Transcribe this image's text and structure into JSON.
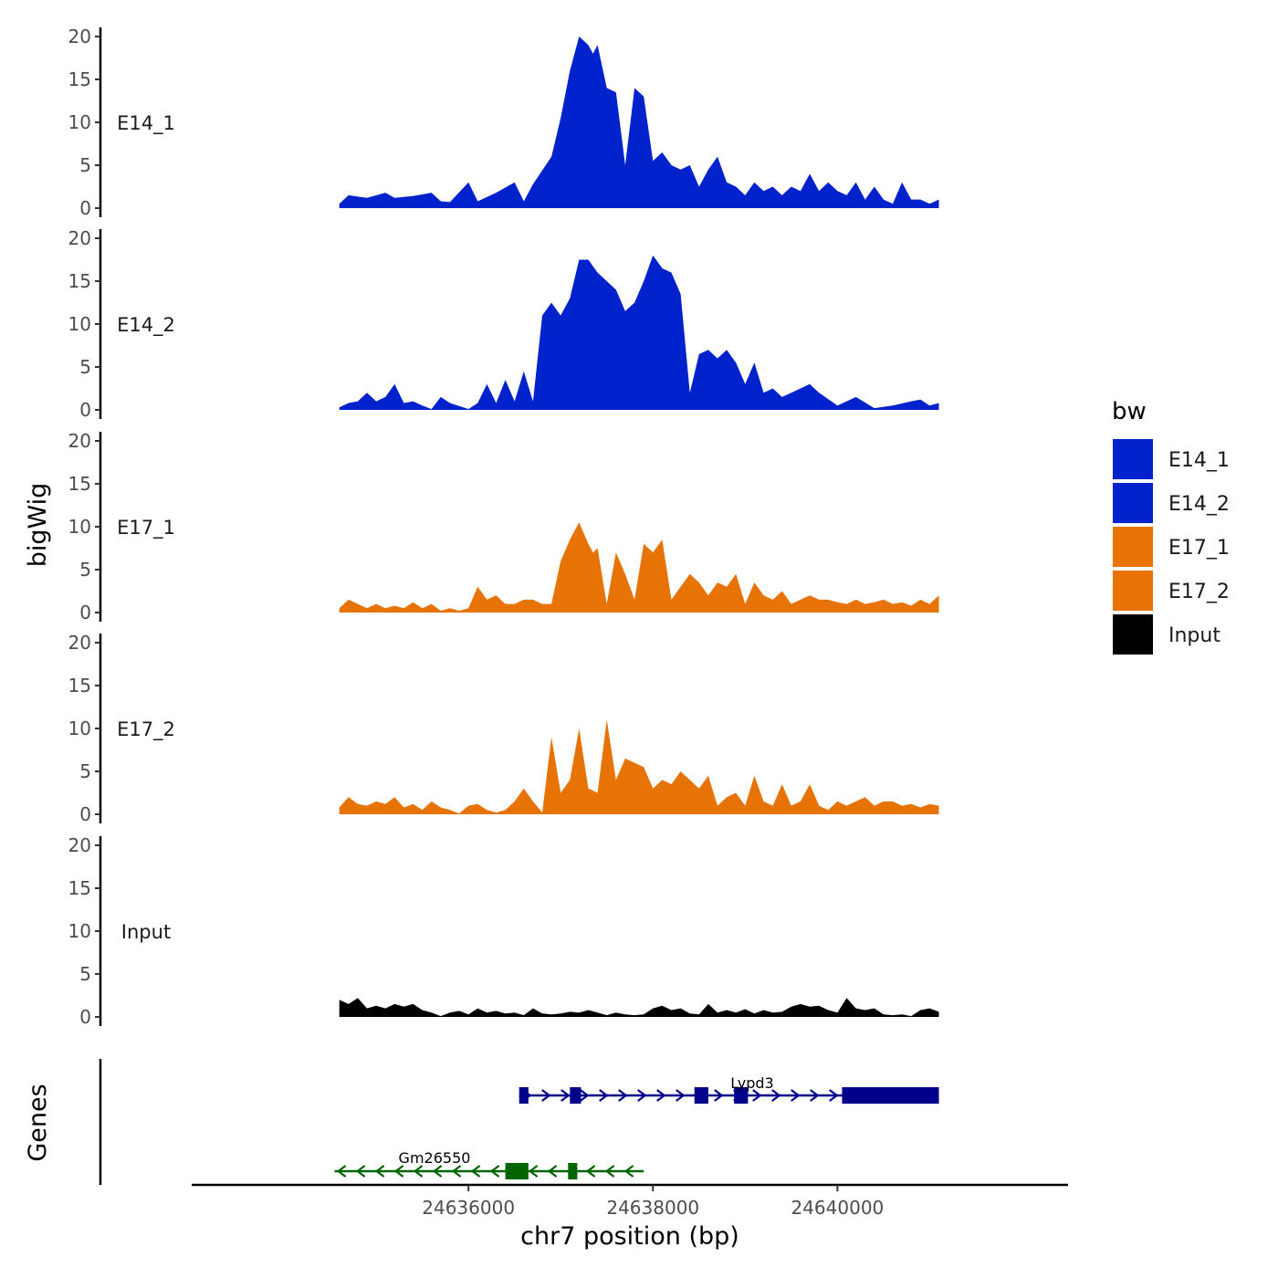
{
  "chart_data": {
    "type": "area",
    "subtype": "genome-browser-coverage-tracks",
    "ylabel": "bigWig",
    "xlabel": "chr7 position (bp)",
    "xlim": [
      24633000,
      24642500
    ],
    "ylim": [
      0,
      20
    ],
    "y_ticks": [
      "0",
      "5",
      "10",
      "15",
      "20"
    ],
    "x_ticks": [
      {
        "value": 24636000,
        "label": "24636000"
      },
      {
        "value": 24638000,
        "label": "24638000"
      },
      {
        "value": 24640000,
        "label": "24640000"
      }
    ],
    "legend": {
      "title": "bw",
      "position": "right",
      "entries": [
        {
          "label": "E14_1",
          "color": "#0022CC"
        },
        {
          "label": "E14_2",
          "color": "#0022CC"
        },
        {
          "label": "E17_1",
          "color": "#E87305"
        },
        {
          "label": "E17_2",
          "color": "#E87305"
        },
        {
          "label": "Input",
          "color": "#000000"
        }
      ]
    },
    "series": [
      {
        "name": "E14_1",
        "color": "#0022CC",
        "x": [
          24634600,
          24634700,
          24634900,
          24635100,
          24635200,
          24635400,
          24635600,
          24635700,
          24635800,
          24636000,
          24636100,
          24636300,
          24636500,
          24636600,
          24636700,
          24636900,
          24637000,
          24637100,
          24637200,
          24637300,
          24637350,
          24637400,
          24637500,
          24637600,
          24637700,
          24637800,
          24637900,
          24638000,
          24638100,
          24638200,
          24638300,
          24638400,
          24638500,
          24638600,
          24638700,
          24638800,
          24638900,
          24639000,
          24639100,
          24639200,
          24639300,
          24639400,
          24639500,
          24639600,
          24639700,
          24639800,
          24639900,
          24640000,
          24640100,
          24640200,
          24640300,
          24640400,
          24640500,
          24640600,
          24640700,
          24640800,
          24640900,
          24641000,
          24641100
        ],
        "y": [
          0.5,
          1.5,
          1.2,
          1.8,
          1.2,
          1.4,
          1.8,
          0.8,
          0.7,
          3.0,
          0.8,
          1.8,
          3.0,
          0.8,
          2.8,
          6.0,
          10.5,
          16.0,
          20.0,
          19.0,
          18.0,
          19.0,
          14.0,
          13.5,
          5.0,
          14.0,
          13.0,
          5.5,
          6.5,
          5.0,
          4.5,
          5.0,
          2.5,
          4.5,
          6.0,
          3.0,
          2.5,
          1.5,
          3.0,
          2.0,
          2.5,
          1.5,
          2.5,
          2.0,
          4.0,
          2.0,
          3.0,
          2.0,
          1.5,
          3.0,
          1.0,
          2.5,
          1.0,
          0.5,
          3.0,
          1.0,
          1.0,
          0.5,
          1.0
        ]
      },
      {
        "name": "E14_2",
        "color": "#0022CC",
        "x": [
          24634600,
          24634700,
          24634800,
          24634900,
          24635000,
          24635100,
          24635200,
          24635300,
          24635400,
          24635500,
          24635600,
          24635700,
          24635800,
          24636000,
          24636100,
          24636200,
          24636300,
          24636400,
          24636500,
          24636600,
          24636700,
          24636800,
          24636900,
          24637000,
          24637100,
          24637200,
          24637300,
          24637400,
          24637500,
          24637600,
          24637700,
          24637800,
          24637900,
          24638000,
          24638100,
          24638200,
          24638300,
          24638400,
          24638500,
          24638600,
          24638700,
          24638800,
          24638900,
          24639000,
          24639100,
          24639200,
          24639300,
          24639400,
          24639500,
          24639600,
          24639700,
          24639800,
          24640000,
          24640100,
          24640200,
          24640400,
          24640600,
          24640800,
          24640900,
          24641000,
          24641100
        ],
        "y": [
          0.3,
          0.8,
          1.0,
          2.0,
          1.0,
          1.5,
          3.0,
          0.8,
          1.0,
          0.5,
          0.1,
          1.5,
          0.8,
          0.1,
          0.8,
          3.0,
          0.8,
          3.5,
          1.0,
          4.5,
          1.0,
          11.0,
          12.5,
          11.0,
          13.0,
          17.5,
          17.5,
          16.0,
          15.0,
          14.0,
          11.5,
          12.5,
          15.0,
          18.0,
          16.5,
          16.0,
          13.5,
          2.0,
          6.5,
          7.0,
          6.0,
          7.0,
          5.5,
          3.0,
          5.5,
          2.0,
          2.5,
          1.5,
          2.0,
          2.5,
          3.0,
          2.0,
          0.5,
          1.0,
          1.5,
          0.2,
          0.5,
          1.0,
          1.2,
          0.5,
          0.8
        ]
      },
      {
        "name": "E17_1",
        "color": "#E87305",
        "x": [
          24634600,
          24634700,
          24634800,
          24634900,
          24635000,
          24635100,
          24635200,
          24635300,
          24635400,
          24635500,
          24635600,
          24635700,
          24635800,
          24635900,
          24636000,
          24636100,
          24636200,
          24636300,
          24636400,
          24636500,
          24636600,
          24636700,
          24636800,
          24636900,
          24637000,
          24637100,
          24637200,
          24637300,
          24637350,
          24637400,
          24637500,
          24637600,
          24637700,
          24637800,
          24637900,
          24638000,
          24638100,
          24638200,
          24638300,
          24638400,
          24638500,
          24638600,
          24638700,
          24638800,
          24638900,
          24639000,
          24639100,
          24639200,
          24639300,
          24639400,
          24639500,
          24639600,
          24639700,
          24639800,
          24639900,
          24640000,
          24640100,
          24640200,
          24640300,
          24640400,
          24640500,
          24640600,
          24640700,
          24640800,
          24640900,
          24641000,
          24641100
        ],
        "y": [
          0.5,
          1.5,
          1.0,
          0.5,
          1.0,
          0.5,
          0.8,
          0.5,
          1.2,
          0.5,
          1.0,
          0.2,
          0.5,
          0.2,
          0.5,
          3.0,
          1.5,
          2.0,
          1.0,
          1.0,
          1.5,
          1.5,
          1.0,
          1.0,
          6.0,
          8.5,
          10.5,
          8.0,
          7.0,
          7.5,
          1.0,
          7.0,
          4.5,
          1.5,
          8.0,
          7.0,
          8.5,
          1.5,
          3.0,
          4.5,
          3.5,
          2.0,
          3.5,
          3.0,
          4.5,
          1.0,
          3.5,
          2.0,
          1.5,
          2.5,
          1.0,
          1.5,
          2.0,
          1.5,
          1.5,
          1.2,
          1.0,
          1.5,
          1.0,
          1.2,
          1.5,
          1.0,
          1.2,
          0.8,
          1.5,
          1.0,
          2.0
        ]
      },
      {
        "name": "E17_2",
        "color": "#E87305",
        "x": [
          24634600,
          24634700,
          24634800,
          24634900,
          24635000,
          24635100,
          24635200,
          24635300,
          24635400,
          24635500,
          24635600,
          24635700,
          24635800,
          24635900,
          24636000,
          24636100,
          24636200,
          24636300,
          24636400,
          24636500,
          24636600,
          24636700,
          24636800,
          24636900,
          24637000,
          24637100,
          24637200,
          24637300,
          24637400,
          24637500,
          24637600,
          24637700,
          24637800,
          24637900,
          24638000,
          24638100,
          24638200,
          24638300,
          24638400,
          24638500,
          24638600,
          24638700,
          24638800,
          24638900,
          24639000,
          24639100,
          24639200,
          24639300,
          24639400,
          24639500,
          24639600,
          24639700,
          24639800,
          24639900,
          24640000,
          24640100,
          24640200,
          24640300,
          24640400,
          24640500,
          24640600,
          24640700,
          24640800,
          24640900,
          24641000,
          24641100
        ],
        "y": [
          0.8,
          2.0,
          1.2,
          1.0,
          1.5,
          1.2,
          2.0,
          0.8,
          1.2,
          0.5,
          1.5,
          0.8,
          0.5,
          0.1,
          1.0,
          1.2,
          0.5,
          0.2,
          0.5,
          1.5,
          3.0,
          1.5,
          0.2,
          9.0,
          2.5,
          4.0,
          10.0,
          3.0,
          2.5,
          11.0,
          4.0,
          6.5,
          6.0,
          5.5,
          3.0,
          4.0,
          3.5,
          5.0,
          4.0,
          3.0,
          4.5,
          1.0,
          2.0,
          2.5,
          1.0,
          4.5,
          1.5,
          1.0,
          3.5,
          1.0,
          1.5,
          3.5,
          1.0,
          0.5,
          1.5,
          1.0,
          1.5,
          2.0,
          1.0,
          1.5,
          1.5,
          1.0,
          1.2,
          0.8,
          1.2,
          1.0
        ]
      },
      {
        "name": "Input",
        "color": "#000000",
        "x": [
          24634600,
          24634700,
          24634800,
          24634900,
          24635000,
          24635100,
          24635200,
          24635300,
          24635400,
          24635500,
          24635600,
          24635700,
          24635800,
          24635900,
          24636000,
          24636100,
          24636200,
          24636300,
          24636400,
          24636500,
          24636600,
          24636700,
          24636800,
          24636900,
          24637000,
          24637100,
          24637200,
          24637300,
          24637400,
          24637500,
          24637600,
          24637700,
          24637800,
          24637900,
          24638000,
          24638100,
          24638200,
          24638300,
          24638400,
          24638500,
          24638600,
          24638700,
          24638800,
          24638900,
          24639000,
          24639100,
          24639200,
          24639300,
          24639400,
          24639500,
          24639600,
          24639700,
          24639800,
          24639900,
          24640000,
          24640100,
          24640200,
          24640300,
          24640400,
          24640500,
          24640600,
          24640700,
          24640800,
          24640900,
          24641000,
          24641100
        ],
        "y": [
          2.0,
          1.5,
          2.2,
          1.0,
          1.3,
          1.0,
          1.5,
          1.2,
          1.5,
          0.8,
          0.5,
          0.1,
          0.5,
          0.7,
          0.3,
          1.0,
          0.5,
          0.7,
          0.4,
          0.5,
          0.2,
          1.0,
          0.4,
          0.3,
          0.4,
          0.6,
          0.5,
          0.8,
          0.5,
          0.2,
          0.5,
          0.3,
          0.2,
          0.3,
          1.0,
          1.3,
          0.8,
          1.0,
          0.4,
          0.3,
          1.5,
          0.5,
          0.8,
          0.5,
          0.9,
          0.4,
          0.8,
          0.5,
          0.6,
          1.2,
          1.5,
          1.2,
          1.3,
          0.8,
          0.5,
          2.2,
          1.0,
          0.8,
          1.0,
          0.3,
          0.2,
          0.3,
          0.1,
          0.8,
          1.0,
          0.6
        ]
      }
    ],
    "genes": {
      "track_label": "Genes",
      "items": [
        {
          "name": "Lypd3",
          "strand": "+",
          "color": "#00008B",
          "start": 24636550,
          "end": 24641100,
          "exons": [
            [
              24636550,
              24636650
            ],
            [
              24637100,
              24637220
            ],
            [
              24638450,
              24638600
            ],
            [
              24638880,
              24639030
            ],
            [
              24640050,
              24641100
            ]
          ]
        },
        {
          "name": "Gm26550",
          "strand": "-",
          "color": "#006400",
          "start": 24634550,
          "end": 24637900,
          "exons": [
            [
              24636400,
              24636650
            ],
            [
              24637080,
              24637180
            ]
          ]
        }
      ]
    }
  }
}
